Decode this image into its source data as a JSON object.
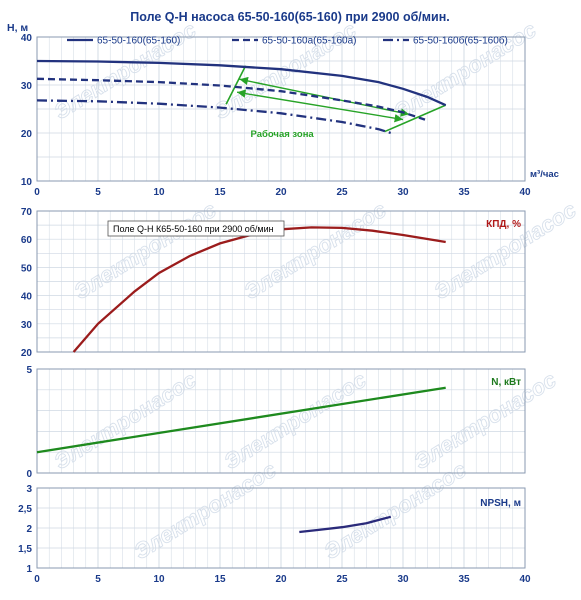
{
  "title": "Поле Q-H насоса 65-50-160(65-160) при 2900 об/мин.",
  "tooltip": "Поле Q-H К65-50-160 при 2900 об/мин",
  "watermark": "Электронасос",
  "colors": {
    "axis_text": "#1a3a8a",
    "grid": "#cfd8e3",
    "frame": "#8a9ab0",
    "h_series": "#22327e",
    "eff": "#9b1c1c",
    "power": "#1e8a1e",
    "npsh": "#2a2a7a",
    "work_zone": "#27a327",
    "eff_label": "#b01818",
    "power_label": "#1e7a1e",
    "npsh_label": "#1a3a8a"
  },
  "chart_data": [
    {
      "type": "line",
      "id": "qh",
      "title": "Поле Q-H насоса 65-50-160(65-160) при 2900 об/мин.",
      "ylabel": "Н, м",
      "xlabel": "м³/час",
      "xlim": [
        0,
        40
      ],
      "ylim": [
        10,
        40
      ],
      "xticks": [
        0,
        5,
        10,
        15,
        20,
        25,
        30,
        35,
        40
      ],
      "yticks": [
        10,
        20,
        30,
        40
      ],
      "grid": true,
      "legend": "top",
      "series": [
        {
          "name": "65-50-160(65-160)",
          "style": "solid",
          "x": [
            0,
            5,
            10,
            15,
            20,
            25,
            28,
            30,
            32,
            33.5
          ],
          "y": [
            35,
            34.9,
            34.6,
            34.1,
            33.3,
            31.9,
            30.6,
            29.2,
            27.5,
            25.8
          ]
        },
        {
          "name": "65-50-160а(65-160а)",
          "style": "dash",
          "x": [
            0,
            5,
            10,
            15,
            20,
            25,
            28,
            30,
            31.8
          ],
          "y": [
            31.3,
            31,
            30.6,
            29.9,
            28.7,
            26.8,
            25.5,
            24.3,
            22.8
          ]
        },
        {
          "name": "65-50-160б(65-160б)",
          "style": "dashdot",
          "x": [
            0,
            5,
            10,
            15,
            20,
            25,
            28,
            29
          ],
          "y": [
            26.8,
            26.6,
            26.1,
            25.3,
            24.1,
            22.3,
            20.8,
            20
          ]
        }
      ],
      "work_zone": {
        "label": "Рабочая зона",
        "left": {
          "x": [
            17.1,
            15.5
          ],
          "y": [
            34,
            26
          ]
        },
        "right": {
          "x": [
            33.5,
            28.5
          ],
          "y": [
            25.8,
            20.3
          ]
        },
        "arrow_upper": {
          "from": [
            16.6,
            31.2
          ],
          "to": [
            30.5,
            23.9
          ]
        },
        "arrow_lower": {
          "from": [
            16.4,
            28.5
          ],
          "to": [
            30,
            22.8
          ]
        }
      }
    },
    {
      "type": "line",
      "id": "eff",
      "ylabel": "КПД, %",
      "xlim": [
        0,
        40
      ],
      "ylim": [
        20,
        70
      ],
      "yticks": [
        20,
        30,
        40,
        50,
        60,
        70
      ],
      "grid": true,
      "series": [
        {
          "name": "КПД, %",
          "x": [
            3,
            5,
            8,
            10,
            12.5,
            15,
            17.5,
            20,
            22.5,
            25,
            27.5,
            30,
            33.5
          ],
          "y": [
            20,
            30,
            41.5,
            48,
            54,
            58.5,
            61.5,
            63.5,
            64.2,
            64,
            63,
            61.5,
            59
          ]
        }
      ]
    },
    {
      "type": "line",
      "id": "power",
      "ylabel": "N, кВт",
      "xlim": [
        0,
        40
      ],
      "ylim": [
        0,
        5
      ],
      "yticks": [
        0,
        5
      ],
      "grid": true,
      "series": [
        {
          "name": "N, кВт",
          "x": [
            0,
            33.5
          ],
          "y": [
            1,
            4.1
          ]
        }
      ]
    },
    {
      "type": "line",
      "id": "npsh",
      "ylabel": "NPSH, м",
      "xlabel": "",
      "xlim": [
        0,
        40
      ],
      "ylim": [
        1,
        3
      ],
      "xticks": [
        0,
        5,
        10,
        15,
        20,
        25,
        30,
        35,
        40
      ],
      "yticks": [
        1,
        1.5,
        2,
        2.5,
        3
      ],
      "ytick_labels": [
        "1",
        "1,5",
        "2",
        "2,5",
        "3"
      ],
      "grid": true,
      "series": [
        {
          "name": "NPSH, м",
          "x": [
            21.5,
            23,
            25,
            27,
            29
          ],
          "y": [
            1.9,
            1.95,
            2.02,
            2.12,
            2.28
          ]
        }
      ]
    }
  ]
}
